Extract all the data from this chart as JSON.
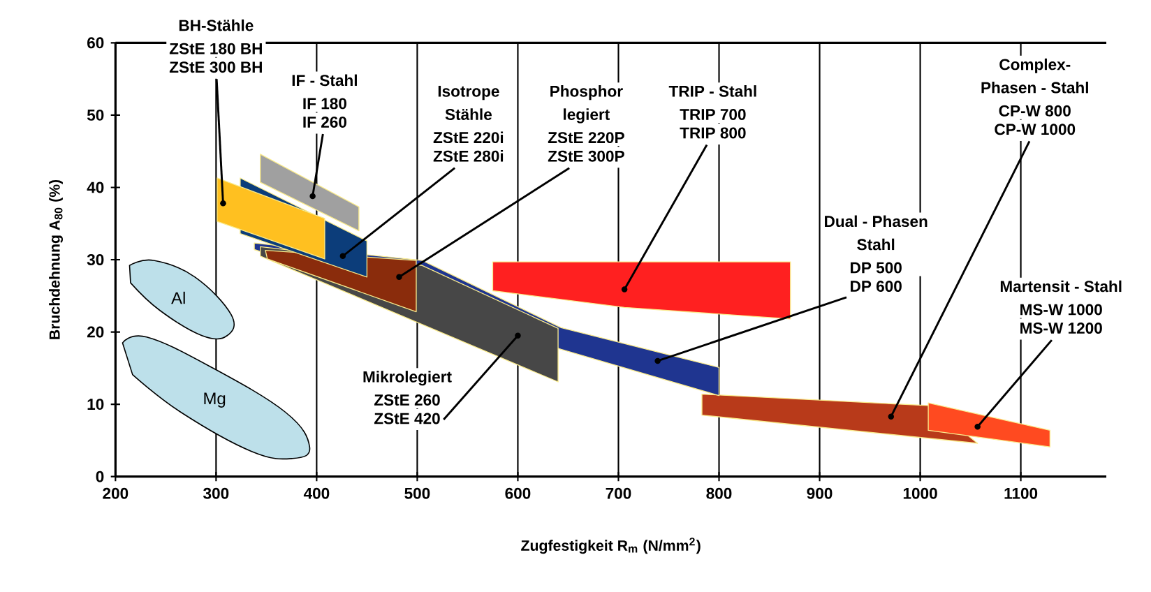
{
  "chart_data": {
    "type": "area",
    "xlabel": "Zugfestigkeit R$_{m}$ (N/mm$^{2}$)",
    "ylabel": "Bruchdehnung A$_{80}$ (%)",
    "xlim": [
      200,
      1185
    ],
    "ylim": [
      0,
      60
    ],
    "xticks": [
      200,
      300,
      400,
      500,
      600,
      700,
      800,
      900,
      1000,
      1100
    ],
    "yticks": [
      0,
      10,
      20,
      30,
      40,
      50,
      60
    ],
    "grid": "x",
    "series": [
      {
        "name": "Mg",
        "color": "#bde0ea",
        "x": [
          207,
          231,
          293,
          369,
          393,
          376,
          335,
          265,
          217
        ],
        "values": [
          18.5,
          19.3,
          15.3,
          8.9,
          4.1,
          2.5,
          3.5,
          8.9,
          14.1
        ]
      },
      {
        "name": "Al",
        "color": "#bde0ea",
        "x": [
          214,
          238,
          279,
          315,
          311,
          286,
          244,
          215
        ],
        "values": [
          29.2,
          29.9,
          27.6,
          22.4,
          19.5,
          19.5,
          23.0,
          26.8
        ]
      },
      {
        "color": "#b83a1a",
        "x": [
          783,
          1011,
          1057,
          783
        ],
        "values": [
          11.4,
          9.8,
          4.6,
          8.5
        ]
      },
      {
        "color": "#1f3590",
        "x": [
          338,
          505,
          643,
          800,
          800,
          643,
          338
        ],
        "values": [
          32.3,
          29.9,
          20.6,
          15.1,
          11.2,
          17.6,
          31.4
        ]
      },
      {
        "color": "#474747",
        "x": [
          344,
          505,
          640,
          640,
          344
        ],
        "values": [
          31.8,
          29.2,
          20.5,
          13.1,
          30.5
        ]
      },
      {
        "color": "#8a2c0c",
        "x": [
          349,
          499,
          499,
          351
        ],
        "values": [
          31.3,
          29.9,
          22.8,
          30.1
        ]
      },
      {
        "color": "#ff2020",
        "x": [
          575,
          871,
          871,
          706,
          575
        ],
        "values": [
          29.7,
          29.7,
          21.8,
          23.4,
          25.7
        ]
      },
      {
        "color": "#0c3d7a",
        "x": [
          324,
          450,
          450,
          324
        ],
        "values": [
          41.3,
          32.6,
          27.6,
          33.6
        ]
      },
      {
        "color": "#a0a0a0",
        "x": [
          344,
          442,
          442,
          344
        ],
        "values": [
          44.6,
          37.3,
          34.0,
          40.7
        ]
      },
      {
        "color": "#ffc020",
        "x": [
          301,
          408,
          408,
          301
        ],
        "values": [
          41.3,
          35.7,
          30.1,
          35.3
        ]
      },
      {
        "color": "#ff4a20",
        "x": [
          1008,
          1129,
          1129,
          1008
        ],
        "values": [
          10.2,
          6.4,
          4.1,
          6.4
        ]
      }
    ],
    "annotations": [
      "BH-Stähle",
      "ZStE 180 BH",
      {
        "text": "ZStE 300 BH",
        "x": 307,
        "y": 37.8
      },
      "IF - Stahl",
      "IF 180",
      {
        "text": "IF 260",
        "x": 396,
        "y": 38.8
      },
      "Isotrope",
      "Stähle",
      "ZStE 220i",
      {
        "text": "ZStE 280i",
        "x": 426,
        "y": 30.5
      },
      "Phosphor",
      "legiert",
      "ZStE 220P",
      {
        "text": "ZStE 300P",
        "x": 482,
        "y": 27.6
      },
      "TRIP - Stahl",
      "TRIP 700",
      {
        "text": "TRIP 800",
        "x": 706,
        "y": 25.9
      },
      "Dual - Phasen",
      "Stahl",
      "DP 500",
      {
        "text": "DP 600",
        "x": 739,
        "y": 16.0
      },
      "Complex-",
      "Phasen - Stahl",
      "CP-W 800",
      {
        "text": "CP-W 1000",
        "x": 971,
        "y": 8.3
      },
      "Martensit - Stahl",
      "MS-W 1000",
      {
        "text": "MS-W 1200",
        "x": 1057,
        "y": 6.9
      },
      "Mikrolegiert",
      "ZStE 260",
      {
        "text": "ZStE 420",
        "x": 600,
        "y": 19.5
      }
    ]
  }
}
